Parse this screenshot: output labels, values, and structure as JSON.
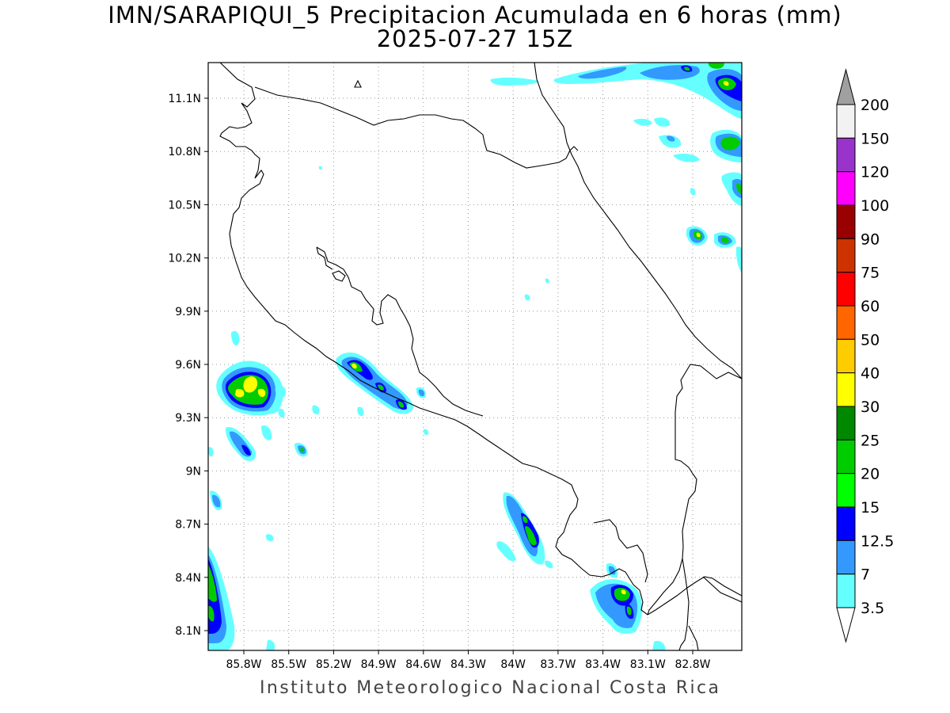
{
  "title": {
    "line1": "IMN/SARAPIQUI_5 Precipitacion Acumulada en 6 horas (mm)",
    "line2": "2025-07-27 15Z"
  },
  "footer": "Instituto Meteorologico Nacional Costa Rica",
  "map": {
    "lat_labels": [
      "11.1N",
      "10.8N",
      "10.5N",
      "10.2N",
      "9.9N",
      "9.6N",
      "9.3N",
      "9N",
      "8.7N",
      "8.4N",
      "8.1N"
    ],
    "lon_labels": [
      "85.8W",
      "85.5W",
      "85.2W",
      "84.9W",
      "84.6W",
      "84.3W",
      "84W",
      "83.7W",
      "83.4W",
      "83.1W",
      "82.8W"
    ]
  },
  "legend": {
    "labels": [
      "200",
      "150",
      "120",
      "100",
      "90",
      "75",
      "60",
      "50",
      "40",
      "30",
      "25",
      "20",
      "15",
      "12.5",
      "7",
      "3.5"
    ],
    "colors": [
      "#f2f2f2",
      "#9933cc",
      "#ff00ff",
      "#990000",
      "#cc3300",
      "#ff0000",
      "#ff6600",
      "#ffcc00",
      "#ffff00",
      "#008800",
      "#00cc00",
      "#00ff00",
      "#0000ff",
      "#3399ff",
      "#66ffff"
    ],
    "over_color": "#a0a0a0",
    "under_color": "#ffffff"
  }
}
